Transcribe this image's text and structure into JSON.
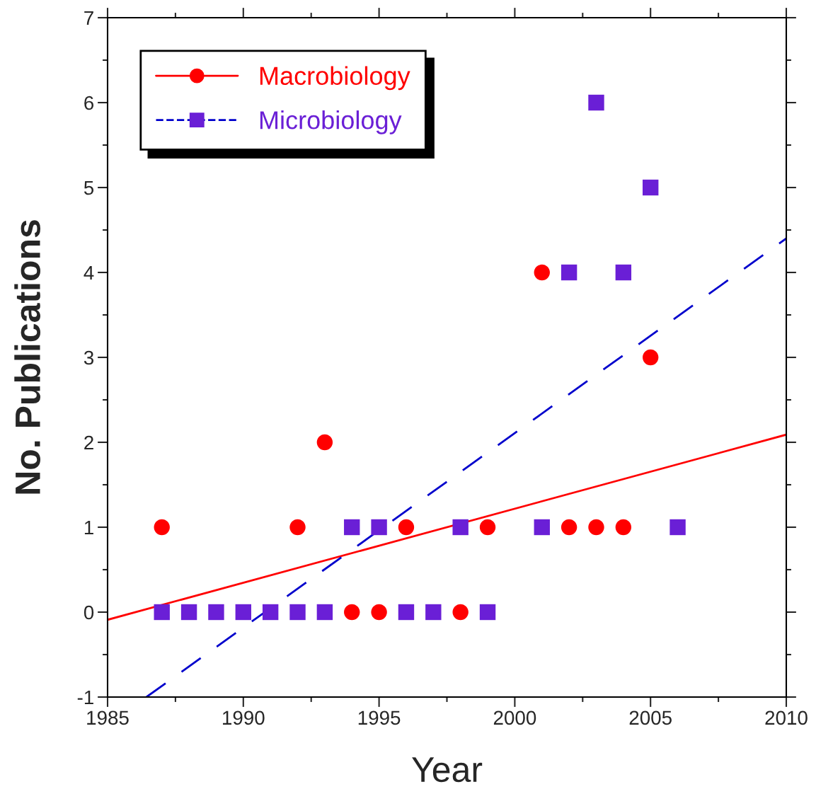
{
  "chart_data": {
    "type": "scatter",
    "xlabel": "Year",
    "ylabel": "No. Publications",
    "xlim": [
      1985,
      2010
    ],
    "xticks": [
      1985,
      1990,
      1995,
      2000,
      2005,
      2010
    ],
    "ylim": [
      -1,
      7
    ],
    "yticks": [
      -1,
      0,
      1,
      2,
      3,
      4,
      5,
      6,
      7
    ],
    "grid": false,
    "legend": "top left",
    "series": [
      {
        "name": "Macrobiology",
        "marker": "circle",
        "color": "#ff0000",
        "x": [
          1987,
          1992,
          1993,
          1994,
          1995,
          1996,
          1998,
          1999,
          2001,
          2002,
          2003,
          2004,
          2005
        ],
        "values": [
          1,
          1,
          2,
          0,
          0,
          1,
          0,
          1,
          4,
          1,
          1,
          1,
          3
        ]
      },
      {
        "type": "line",
        "line_style": "solid",
        "color": "#ff0000",
        "x": [
          1985,
          2010
        ],
        "values": [
          -0.09,
          2.09
        ]
      },
      {
        "name": "Microbiology",
        "marker": "square",
        "color": "#6a1fd6",
        "x": [
          1987,
          1988,
          1989,
          1990,
          1991,
          1992,
          1993,
          1994,
          1995,
          1996,
          1997,
          1998,
          1999,
          2001,
          2002,
          2003,
          2004,
          2005,
          2006
        ],
        "values": [
          0,
          0,
          0,
          0,
          0,
          0,
          0,
          1,
          1,
          0,
          0,
          1,
          0,
          1,
          4,
          6,
          4,
          5,
          1
        ]
      },
      {
        "type": "line",
        "line_style": "dashed",
        "color": "#0000cc",
        "x": [
          1986.43,
          2010
        ],
        "values": [
          -1,
          4.4
        ]
      }
    ]
  }
}
